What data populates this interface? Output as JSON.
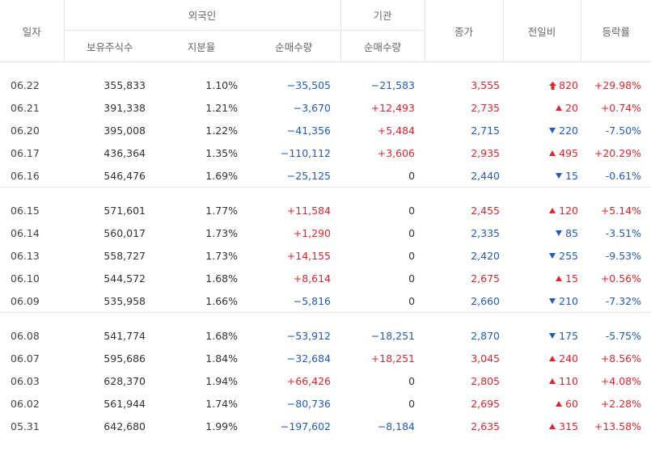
{
  "header": {
    "date": "일자",
    "foreign": "외국인",
    "institution": "기관",
    "holdings": "보유주식수",
    "ratio": "지분율",
    "foreign_net": "순매수량",
    "inst_net": "순매수량",
    "close": "종가",
    "change": "전일비",
    "rate": "등락률"
  },
  "colors": {
    "up": "#e0252d",
    "down": "#1f5bc1"
  },
  "groups": [
    {
      "rows": [
        {
          "date": "06.22",
          "holdings": "355,833",
          "ratio": "1.10%",
          "foreign_net": "−35,505",
          "fn_color": "blue",
          "inst_net": "−21,583",
          "in_color": "blue",
          "close": "3,555",
          "close_color": "red",
          "dir": "limit-up",
          "change": "820",
          "rate": "+29.98%"
        },
        {
          "date": "06.21",
          "holdings": "391,338",
          "ratio": "1.21%",
          "foreign_net": "−3,670",
          "fn_color": "blue",
          "inst_net": "+12,493",
          "in_color": "red",
          "close": "2,735",
          "close_color": "red",
          "dir": "up",
          "change": "20",
          "rate": "+0.74%"
        },
        {
          "date": "06.20",
          "holdings": "395,008",
          "ratio": "1.22%",
          "foreign_net": "−41,356",
          "fn_color": "blue",
          "inst_net": "+5,484",
          "in_color": "red",
          "close": "2,715",
          "close_color": "blue",
          "dir": "down",
          "change": "220",
          "rate": "-7.50%"
        },
        {
          "date": "06.17",
          "holdings": "436,364",
          "ratio": "1.35%",
          "foreign_net": "−110,112",
          "fn_color": "blue",
          "inst_net": "+3,606",
          "in_color": "red",
          "close": "2,935",
          "close_color": "red",
          "dir": "up",
          "change": "495",
          "rate": "+20.29%"
        },
        {
          "date": "06.16",
          "holdings": "546,476",
          "ratio": "1.69%",
          "foreign_net": "−25,125",
          "fn_color": "blue",
          "inst_net": "0",
          "in_color": "blk",
          "close": "2,440",
          "close_color": "blue",
          "dir": "down",
          "change": "15",
          "rate": "-0.61%"
        }
      ]
    },
    {
      "rows": [
        {
          "date": "06.15",
          "holdings": "571,601",
          "ratio": "1.77%",
          "foreign_net": "+11,584",
          "fn_color": "red",
          "inst_net": "0",
          "in_color": "blk",
          "close": "2,455",
          "close_color": "red",
          "dir": "up",
          "change": "120",
          "rate": "+5.14%"
        },
        {
          "date": "06.14",
          "holdings": "560,017",
          "ratio": "1.73%",
          "foreign_net": "+1,290",
          "fn_color": "red",
          "inst_net": "0",
          "in_color": "blk",
          "close": "2,335",
          "close_color": "blue",
          "dir": "down",
          "change": "85",
          "rate": "-3.51%"
        },
        {
          "date": "06.13",
          "holdings": "558,727",
          "ratio": "1.73%",
          "foreign_net": "+14,155",
          "fn_color": "red",
          "inst_net": "0",
          "in_color": "blk",
          "close": "2,420",
          "close_color": "blue",
          "dir": "down",
          "change": "255",
          "rate": "-9.53%"
        },
        {
          "date": "06.10",
          "holdings": "544,572",
          "ratio": "1.68%",
          "foreign_net": "+8,614",
          "fn_color": "red",
          "inst_net": "0",
          "in_color": "blk",
          "close": "2,675",
          "close_color": "red",
          "dir": "up",
          "change": "15",
          "rate": "+0.56%"
        },
        {
          "date": "06.09",
          "holdings": "535,958",
          "ratio": "1.66%",
          "foreign_net": "−5,816",
          "fn_color": "blue",
          "inst_net": "0",
          "in_color": "blk",
          "close": "2,660",
          "close_color": "blue",
          "dir": "down",
          "change": "210",
          "rate": "-7.32%"
        }
      ]
    },
    {
      "rows": [
        {
          "date": "06.08",
          "holdings": "541,774",
          "ratio": "1.68%",
          "foreign_net": "−53,912",
          "fn_color": "blue",
          "inst_net": "−18,251",
          "in_color": "blue",
          "close": "2,870",
          "close_color": "blue",
          "dir": "down",
          "change": "175",
          "rate": "-5.75%"
        },
        {
          "date": "06.07",
          "holdings": "595,686",
          "ratio": "1.84%",
          "foreign_net": "−32,684",
          "fn_color": "blue",
          "inst_net": "+18,251",
          "in_color": "red",
          "close": "3,045",
          "close_color": "red",
          "dir": "up",
          "change": "240",
          "rate": "+8.56%"
        },
        {
          "date": "06.03",
          "holdings": "628,370",
          "ratio": "1.94%",
          "foreign_net": "+66,426",
          "fn_color": "red",
          "inst_net": "0",
          "in_color": "blk",
          "close": "2,805",
          "close_color": "red",
          "dir": "up",
          "change": "110",
          "rate": "+4.08%"
        },
        {
          "date": "06.02",
          "holdings": "561,944",
          "ratio": "1.74%",
          "foreign_net": "−80,736",
          "fn_color": "blue",
          "inst_net": "0",
          "in_color": "blk",
          "close": "2,695",
          "close_color": "red",
          "dir": "up",
          "change": "60",
          "rate": "+2.28%"
        },
        {
          "date": "05.31",
          "holdings": "642,680",
          "ratio": "1.99%",
          "foreign_net": "−197,602",
          "fn_color": "blue",
          "inst_net": "−8,184",
          "in_color": "blue",
          "close": "2,635",
          "close_color": "red",
          "dir": "up",
          "change": "315",
          "rate": "+13.58%"
        }
      ]
    }
  ]
}
